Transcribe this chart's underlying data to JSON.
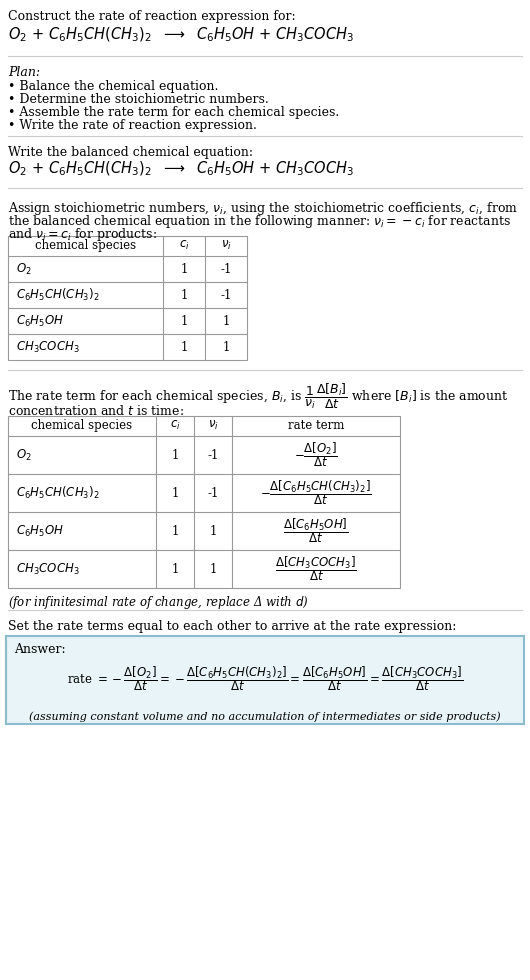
{
  "title_line1": "Construct the rate of reaction expression for:",
  "plan_header": "Plan:",
  "plan_items": [
    "• Balance the chemical equation.",
    "• Determine the stoichiometric numbers.",
    "• Assemble the rate term for each chemical species.",
    "• Write the rate of reaction expression."
  ],
  "section2_header": "Write the balanced chemical equation:",
  "section3_line1": "Assign stoichiometric numbers, $\\nu_i$, using the stoichiometric coefficients, $c_i$, from",
  "section3_line2": "the balanced chemical equation in the following manner: $\\nu_i = -c_i$ for reactants",
  "section3_line3": "and $\\nu_i = c_i$ for products:",
  "table1_headers": [
    "chemical species",
    "$c_i$",
    "$\\nu_i$"
  ],
  "table1_species": [
    "$O_2$",
    "$C_6H_5CH(CH_3)_2$",
    "$C_6H_5OH$",
    "$CH_3COCH_3$"
  ],
  "table1_ci": [
    "1",
    "1",
    "1",
    "1"
  ],
  "table1_vi": [
    "-1",
    "-1",
    "1",
    "1"
  ],
  "section4_line1": "The rate term for each chemical species, $B_i$, is $\\dfrac{1}{\\nu_i}\\dfrac{\\Delta[B_i]}{\\Delta t}$ where $[B_i]$ is the amount",
  "section4_line2": "concentration and $t$ is time:",
  "table2_headers": [
    "chemical species",
    "$c_i$",
    "$\\nu_i$",
    "rate term"
  ],
  "table2_species": [
    "$O_2$",
    "$C_6H_5CH(CH_3)_2$",
    "$C_6H_5OH$",
    "$CH_3COCH_3$"
  ],
  "table2_ci": [
    "1",
    "1",
    "1",
    "1"
  ],
  "table2_vi": [
    "-1",
    "-1",
    "1",
    "1"
  ],
  "table2_rate": [
    "$-\\dfrac{\\Delta[O_2]}{\\Delta t}$",
    "$-\\dfrac{\\Delta[C_6H_5CH(CH_3)_2]}{\\Delta t}$",
    "$\\dfrac{\\Delta[C_6H_5OH]}{\\Delta t}$",
    "$\\dfrac{\\Delta[CH_3COCH_3]}{\\Delta t}$"
  ],
  "infinitesimal_note": "(for infinitesimal rate of change, replace Δ with $d$)",
  "section5_header": "Set the rate terms equal to each other to arrive at the rate expression:",
  "answer_label": "Answer:",
  "answer_footer": "(assuming constant volume and no accumulation of intermediates or side products)",
  "bg_color": "#ffffff",
  "answer_bg_color": "#e8f4f8",
  "answer_border_color": "#8bbccc",
  "text_color": "#000000",
  "table_line_color": "#999999"
}
